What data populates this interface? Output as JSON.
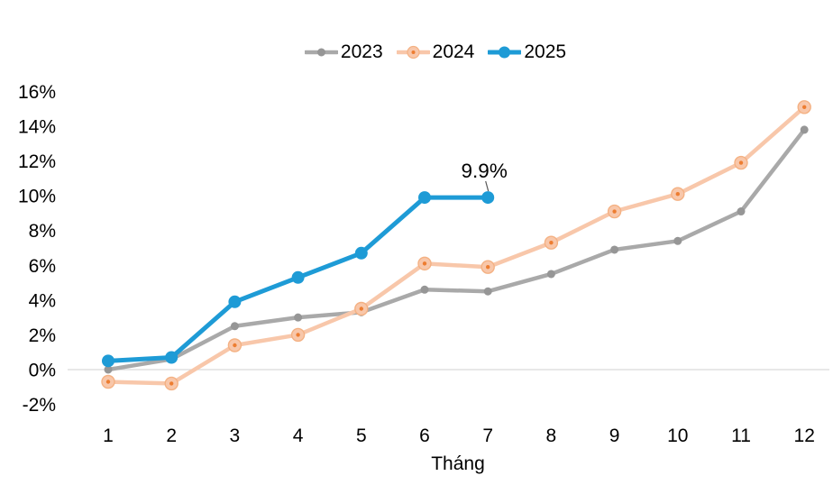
{
  "chart_data": {
    "type": "line",
    "title": "",
    "xlabel": "Tháng",
    "x": [
      1,
      2,
      3,
      4,
      5,
      6,
      7,
      8,
      9,
      10,
      11,
      12
    ],
    "x_tick_labels": [
      "1",
      "2",
      "3",
      "4",
      "5",
      "6",
      "7",
      "8",
      "9",
      "10",
      "11",
      "12"
    ],
    "y_tick_labels": [
      "16%",
      "14%",
      "12%",
      "10%",
      "8%",
      "6%",
      "4%",
      "2%",
      "0%",
      "-2%"
    ],
    "ylim": [
      -2,
      16
    ],
    "y_tick_step": 2,
    "grid": "zero-line-only",
    "legend_position": "top-center",
    "axis_line_color": "#d9d9d9",
    "text_color": "#000000",
    "series": [
      {
        "name": "2023",
        "color": "#a9a9a9",
        "marker_color": "#969696",
        "marker": "dot",
        "values": [
          0.0,
          0.6,
          2.5,
          3.0,
          3.3,
          4.6,
          4.5,
          5.5,
          6.9,
          7.4,
          9.1,
          13.8
        ]
      },
      {
        "name": "2024",
        "color": "#f8c7aa",
        "marker_color": "#f8c7aa",
        "marker_ring_color": "#f4b183",
        "marker_dot_color": "#ed7d31",
        "marker": "circle-dot",
        "values": [
          -0.7,
          -0.8,
          1.4,
          2.0,
          3.5,
          6.1,
          5.9,
          7.3,
          9.1,
          10.1,
          11.9,
          15.1
        ]
      },
      {
        "name": "2025",
        "color": "#1e9bd6",
        "marker_color": "#1e9bd6",
        "marker": "dot-large",
        "values": [
          0.5,
          0.7,
          3.9,
          5.3,
          6.7,
          9.9,
          9.9
        ]
      }
    ],
    "annotation": {
      "text": "9.9%",
      "x": 7,
      "y": 9.9,
      "color": "#000000",
      "leader_color": "#595959"
    }
  }
}
